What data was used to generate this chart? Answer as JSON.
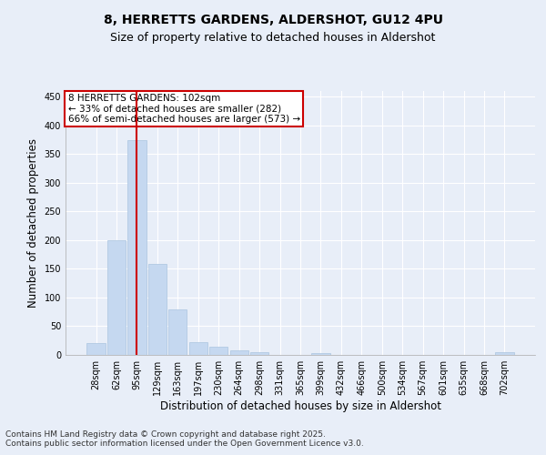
{
  "title_line1": "8, HERRETTS GARDENS, ALDERSHOT, GU12 4PU",
  "title_line2": "Size of property relative to detached houses in Aldershot",
  "xlabel": "Distribution of detached houses by size in Aldershot",
  "ylabel": "Number of detached properties",
  "categories": [
    "28sqm",
    "62sqm",
    "95sqm",
    "129sqm",
    "163sqm",
    "197sqm",
    "230sqm",
    "264sqm",
    "298sqm",
    "331sqm",
    "365sqm",
    "399sqm",
    "432sqm",
    "466sqm",
    "500sqm",
    "534sqm",
    "567sqm",
    "601sqm",
    "635sqm",
    "668sqm",
    "702sqm"
  ],
  "values": [
    20,
    200,
    375,
    158,
    80,
    23,
    15,
    8,
    4,
    0,
    0,
    3,
    0,
    0,
    0,
    0,
    0,
    0,
    0,
    0,
    4
  ],
  "bar_color": "#c5d8f0",
  "bar_edge_color": "#aac4e0",
  "vline_x_index": 2,
  "vline_color": "#cc0000",
  "ylim": [
    0,
    460
  ],
  "yticks": [
    0,
    50,
    100,
    150,
    200,
    250,
    300,
    350,
    400,
    450
  ],
  "annotation_text": "8 HERRETTS GARDENS: 102sqm\n← 33% of detached houses are smaller (282)\n66% of semi-detached houses are larger (573) →",
  "annotation_box_color": "#ffffff",
  "annotation_box_edge": "#cc0000",
  "footer_line1": "Contains HM Land Registry data © Crown copyright and database right 2025.",
  "footer_line2": "Contains public sector information licensed under the Open Government Licence v3.0.",
  "background_color": "#e8eef8",
  "plot_bg_color": "#e8eef8",
  "grid_color": "#ffffff",
  "title_fontsize": 10,
  "subtitle_fontsize": 9,
  "tick_fontsize": 7,
  "label_fontsize": 8.5,
  "annotation_fontsize": 7.5,
  "footer_fontsize": 6.5
}
